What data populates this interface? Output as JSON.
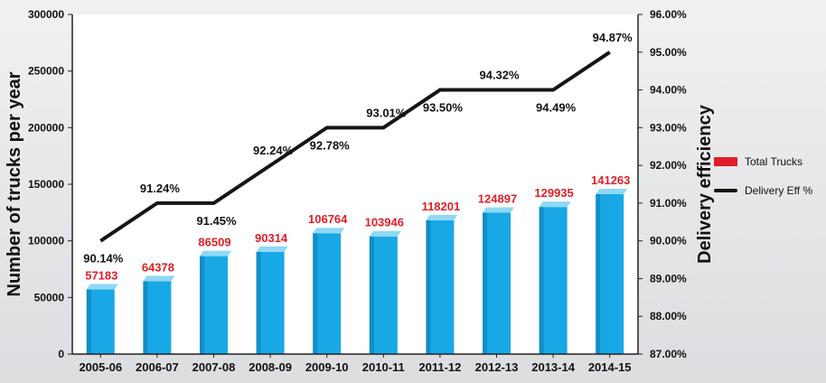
{
  "chart_data": {
    "type": "bar",
    "categories": [
      "2005-06",
      "2006-07",
      "2007-08",
      "2008-09",
      "2009-10",
      "2010-11",
      "2011-12",
      "2012-13",
      "2013-14",
      "2014-15"
    ],
    "series": [
      {
        "name": "Total Trucks",
        "type": "bar",
        "axis": "left",
        "values": [
          57183,
          64378,
          86509,
          90314,
          106764,
          103946,
          118201,
          124897,
          129935,
          141263
        ],
        "labels": [
          "57183",
          "64378",
          "86509",
          "90314",
          "106764",
          "103946",
          "118201",
          "124897",
          "129935",
          "141263"
        ]
      },
      {
        "name": "Delivery Eff %",
        "type": "line",
        "axis": "right",
        "values": [
          90.14,
          91.24,
          91.45,
          92.24,
          92.78,
          93.01,
          93.5,
          94.32,
          94.49,
          94.87
        ],
        "line_values": [
          90.0,
          91.0,
          91.0,
          92.0,
          93.0,
          93.0,
          94.0,
          94.0,
          94.0,
          95.0
        ],
        "labels": [
          "90.14%",
          "91.24%",
          "91.45%",
          "92.24%",
          "92.78%",
          "93.01%",
          "93.50%",
          "94.32%",
          "94.49%",
          "94.87%"
        ]
      }
    ],
    "ylabel": "Number of trucks per year",
    "y2label": "Delivery efficiency",
    "ylim": [
      0,
      300000
    ],
    "y2lim": [
      87,
      96
    ],
    "yticks": [
      "0",
      "50000",
      "100000",
      "150000",
      "200000",
      "250000",
      "300000"
    ],
    "y2ticks": [
      "87.00%",
      "88.00%",
      "89.00%",
      "90.00%",
      "91.00%",
      "92.00%",
      "93.00%",
      "94.00%",
      "95.00%",
      "96.00%"
    ],
    "colors": {
      "bar": "#19a8e6",
      "bar_top": "#8fd8f6",
      "bar_side": "#0c79ad",
      "line": "#151515",
      "bar_label": "#e01e26",
      "legend_bar": "#e01e26"
    },
    "legend": "right",
    "grid": false
  },
  "legend": {
    "bar_label": "Total Trucks",
    "line_label": "Delivery Eff %"
  }
}
